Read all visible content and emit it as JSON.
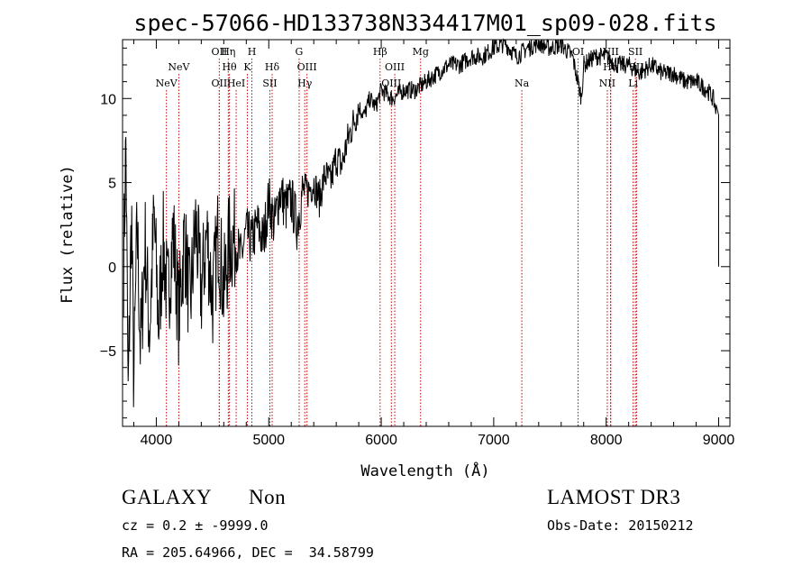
{
  "chart_data": {
    "type": "line",
    "title": "spec-57066-HD133738N334417M01_sp09-028.fits",
    "xlabel": "Wavelength (Å)",
    "ylabel": "Flux (relative)",
    "xlim": [
      3700,
      9100
    ],
    "ylim": [
      -9.5,
      13.5
    ],
    "xticks": [
      4000,
      5000,
      6000,
      7000,
      8000,
      9000
    ],
    "yticks": [
      -5,
      0,
      5,
      10
    ],
    "ytick_labels": [
      "−5",
      "0",
      "5",
      "10"
    ],
    "spectrum_points": [
      [
        3710,
        0.2
      ],
      [
        3730,
        7.5
      ],
      [
        3750,
        -8
      ],
      [
        3780,
        3.5
      ],
      [
        3800,
        -7
      ],
      [
        3830,
        2.5
      ],
      [
        3860,
        -5
      ],
      [
        3900,
        1.5
      ],
      [
        3940,
        -4
      ],
      [
        3980,
        3
      ],
      [
        4020,
        -3.5
      ],
      [
        4060,
        1.5
      ],
      [
        4100,
        -2
      ],
      [
        4150,
        2
      ],
      [
        4200,
        -3
      ],
      [
        4250,
        1.8
      ],
      [
        4300,
        -2.5
      ],
      [
        4350,
        2.5
      ],
      [
        4400,
        -1.5
      ],
      [
        4450,
        2
      ],
      [
        4500,
        -2
      ],
      [
        4550,
        2
      ],
      [
        4600,
        -1.5
      ],
      [
        4650,
        1.5
      ],
      [
        4700,
        1.5
      ],
      [
        4750,
        0.5
      ],
      [
        4800,
        2
      ],
      [
        4850,
        1.5
      ],
      [
        4900,
        2.5
      ],
      [
        4950,
        1.5
      ],
      [
        5000,
        4
      ],
      [
        5050,
        2.5
      ],
      [
        5100,
        4.5
      ],
      [
        5150,
        3.5
      ],
      [
        5200,
        4
      ],
      [
        5250,
        2.5
      ],
      [
        5300,
        4.5
      ],
      [
        5350,
        4.5
      ],
      [
        5400,
        5
      ],
      [
        5450,
        4
      ],
      [
        5500,
        5.5
      ],
      [
        5550,
        5
      ],
      [
        5600,
        6.5
      ],
      [
        5650,
        6
      ],
      [
        5700,
        7.5
      ],
      [
        5750,
        8.5
      ],
      [
        5800,
        9.5
      ],
      [
        5850,
        9
      ],
      [
        5900,
        10
      ],
      [
        5950,
        9.5
      ],
      [
        6000,
        10.5
      ],
      [
        6100,
        10
      ],
      [
        6200,
        10.5
      ],
      [
        6300,
        10.5
      ],
      [
        6400,
        11
      ],
      [
        6500,
        11.5
      ],
      [
        6600,
        12
      ],
      [
        6700,
        12
      ],
      [
        6800,
        12.5
      ],
      [
        6900,
        12.5
      ],
      [
        7000,
        13
      ],
      [
        7100,
        13.3
      ],
      [
        7200,
        12.5
      ],
      [
        7300,
        13
      ],
      [
        7400,
        13.3
      ],
      [
        7500,
        13
      ],
      [
        7600,
        13.2
      ],
      [
        7700,
        12.5
      ],
      [
        7780,
        10
      ],
      [
        7800,
        12
      ],
      [
        7900,
        12.5
      ],
      [
        8000,
        12.5
      ],
      [
        8100,
        12
      ],
      [
        8200,
        12
      ],
      [
        8300,
        11.5
      ],
      [
        8400,
        12
      ],
      [
        8500,
        11.5
      ],
      [
        8600,
        11.5
      ],
      [
        8700,
        11
      ],
      [
        8800,
        11
      ],
      [
        8900,
        10.5
      ],
      [
        8950,
        10
      ],
      [
        8990,
        9
      ],
      [
        9000,
        0
      ]
    ],
    "emission_lines": [
      {
        "name": "NeV",
        "wl": 4090,
        "row": 3
      },
      {
        "name": "NeV",
        "wl": 4200,
        "row": 2
      },
      {
        "name": "OII",
        "wl": 4560,
        "row": 1
      },
      {
        "name": "OII",
        "wl": 4560,
        "row": 3
      },
      {
        "name": "Hη",
        "wl": 4640,
        "row": 1
      },
      {
        "name": "Hθ",
        "wl": 4650,
        "row": 2
      },
      {
        "name": "HeI",
        "wl": 4710,
        "row": 3
      },
      {
        "name": "K",
        "wl": 4810,
        "row": 2
      },
      {
        "name": "H",
        "wl": 4850,
        "row": 1
      },
      {
        "name": "Hδ",
        "wl": 5030,
        "row": 2
      },
      {
        "name": "SII",
        "wl": 5010,
        "row": 3
      },
      {
        "name": "G",
        "wl": 5270,
        "row": 1
      },
      {
        "name": "OIII",
        "wl": 5340,
        "row": 2
      },
      {
        "name": "Hγ",
        "wl": 5320,
        "row": 3
      },
      {
        "name": "Hβ",
        "wl": 5990,
        "row": 1
      },
      {
        "name": "OIII",
        "wl": 6120,
        "row": 2
      },
      {
        "name": "OIII",
        "wl": 6090,
        "row": 3
      },
      {
        "name": "Mg",
        "wl": 6350,
        "row": 1
      },
      {
        "name": "Na",
        "wl": 7250,
        "row": 3
      },
      {
        "name": "OI",
        "wl": 7750,
        "row": 1
      },
      {
        "name": "NII",
        "wl": 8040,
        "row": 1
      },
      {
        "name": "Hα",
        "wl": 8040,
        "row": 2
      },
      {
        "name": "NII",
        "wl": 8010,
        "row": 3
      },
      {
        "name": "SII",
        "wl": 8260,
        "row": 1
      },
      {
        "name": "SII",
        "wl": 8270,
        "row": 2
      },
      {
        "name": "Li",
        "wl": 8240,
        "row": 3
      }
    ]
  },
  "footer": {
    "class_label": "GALAXY",
    "subclass_label": "Non",
    "survey_label": "LAMOST DR3",
    "cz_text": "cz = 0.2 ± -9999.0",
    "obs_date_text": "Obs-Date: 20150212",
    "radec_text": "RA = 205.64966, DEC =  34.58799"
  },
  "colors": {
    "spectrum": "#000000",
    "line_markers": "#cc0000",
    "axes": "#000000"
  }
}
